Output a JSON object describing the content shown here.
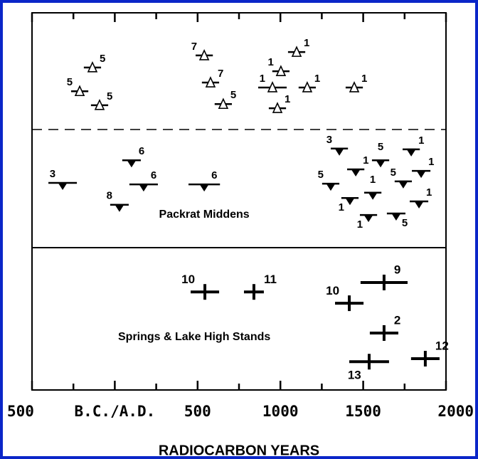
{
  "chart_data": {
    "type": "dated-events",
    "xlabel": "RADIOCARBON YEARS",
    "xlim": [
      -500,
      2000
    ],
    "xticks": [
      {
        "value": -500,
        "label": "500"
      },
      {
        "value": 0,
        "label": "B.C./A.D."
      },
      500,
      1000,
      1500,
      2000
    ],
    "xticks_minor": [
      -250,
      250,
      750,
      1250,
      1750
    ],
    "ylim": [
      0,
      100
    ],
    "color": "#000000",
    "border_color": "#0a26c8",
    "annotations": [
      {
        "text": "Packrat Middens",
        "x": 540,
        "y": 46.5
      },
      {
        "text": "Springs & Lake High Stands",
        "x": 480,
        "y": 14
      }
    ],
    "groups": [
      {
        "marker": "open-triangle",
        "points": [
          {
            "x": -135,
            "err": 52,
            "y": 85.5,
            "label": 5,
            "side": "right"
          },
          {
            "x": -212,
            "err": 52,
            "y": 79.2,
            "label": 5,
            "side": "left"
          },
          {
            "x": -92,
            "err": 52,
            "y": 75.5,
            "label": 5,
            "side": "right"
          },
          {
            "x": 540,
            "err": 52,
            "y": 88.7,
            "label": 7,
            "side": "left"
          },
          {
            "x": 578,
            "err": 52,
            "y": 81.5,
            "label": 7,
            "side": "right"
          },
          {
            "x": 655,
            "err": 52,
            "y": 75.8,
            "label": 5,
            "side": "right"
          },
          {
            "x": 1098,
            "err": 52,
            "y": 89.6,
            "label": 1,
            "side": "right"
          },
          {
            "x": 1003,
            "err": 52,
            "y": 84.5,
            "label": 1,
            "side": "left"
          },
          {
            "x": 952,
            "err": 86,
            "y": 80.2,
            "label": 1,
            "side": "left"
          },
          {
            "x": 1162,
            "err": 52,
            "y": 80.2,
            "label": 1,
            "side": "right"
          },
          {
            "x": 982,
            "err": 52,
            "y": 74.7,
            "label": 1,
            "side": "right"
          },
          {
            "x": 1446,
            "err": 52,
            "y": 80.2,
            "label": 1,
            "side": "right"
          }
        ]
      },
      {
        "marker": "filled-triangle",
        "points": [
          {
            "x": -315,
            "err": 86,
            "y": 54.9,
            "label": 3,
            "side": "left"
          },
          {
            "x": 28,
            "err": 56,
            "y": 49.1,
            "label": 8,
            "side": "left"
          },
          {
            "x": 101,
            "err": 56,
            "y": 60.9,
            "label": 6,
            "side": "right"
          },
          {
            "x": 174,
            "err": 86,
            "y": 54.5,
            "label": 6,
            "side": "right"
          },
          {
            "x": 540,
            "err": 95,
            "y": 54.5,
            "label": 6,
            "side": "right"
          },
          {
            "x": 1356,
            "err": 52,
            "y": 64.0,
            "label": 3,
            "side": "left"
          },
          {
            "x": 1605,
            "err": 52,
            "y": 60.9,
            "label": 5,
            "side": "top"
          },
          {
            "x": 1455,
            "err": 52,
            "y": 58.5,
            "label": 1,
            "side": "right"
          },
          {
            "x": 1304,
            "err": 52,
            "y": 54.7,
            "label": 5,
            "side": "left"
          },
          {
            "x": 1420,
            "err": 52,
            "y": 50.9,
            "label": 1,
            "side": "below-left"
          },
          {
            "x": 1558,
            "err": 52,
            "y": 52.3,
            "label": 1,
            "side": "top"
          },
          {
            "x": 1532,
            "err": 52,
            "y": 46.4,
            "label": 1,
            "side": "below-left"
          },
          {
            "x": 1790,
            "err": 52,
            "y": 63.8,
            "label": 1,
            "side": "right"
          },
          {
            "x": 1850,
            "err": 56,
            "y": 58.1,
            "label": 1,
            "side": "right"
          },
          {
            "x": 1742,
            "err": 52,
            "y": 55.3,
            "label": 5,
            "side": "left"
          },
          {
            "x": 1837,
            "err": 56,
            "y": 50.0,
            "label": 1,
            "side": "right"
          },
          {
            "x": 1699,
            "err": 56,
            "y": 46.8,
            "label": 5,
            "side": "below-right"
          }
        ]
      },
      {
        "marker": "cross",
        "points": [
          {
            "x": 544,
            "err": 86,
            "y": 26.0,
            "label": 10,
            "side": "left"
          },
          {
            "x": 840,
            "err": 60,
            "y": 26.0,
            "label": 11,
            "side": "right"
          },
          {
            "x": 1626,
            "err": 142,
            "y": 28.5,
            "label": 9,
            "side": "right"
          },
          {
            "x": 1416,
            "err": 86,
            "y": 23.0,
            "label": 10,
            "side": "left"
          },
          {
            "x": 1626,
            "err": 86,
            "y": 15.1,
            "label": 2,
            "side": "right"
          },
          {
            "x": 1536,
            "err": 120,
            "y": 7.5,
            "label": 13,
            "side": "below-left"
          },
          {
            "x": 1875,
            "err": 86,
            "y": 8.3,
            "label": 12,
            "side": "right"
          }
        ]
      }
    ]
  }
}
